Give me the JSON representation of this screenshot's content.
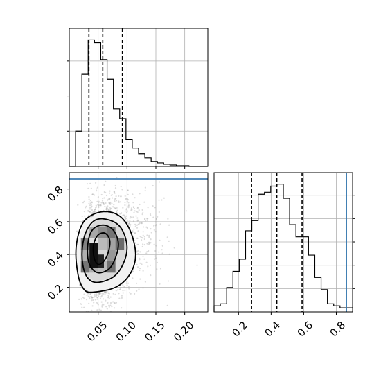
{
  "chart_data": [
    {
      "panel": "top-left",
      "type": "histogram",
      "variable": "x",
      "xlim": [
        0.0,
        0.24
      ],
      "bin_edges": [
        0.0,
        0.0109,
        0.0218,
        0.0327,
        0.0436,
        0.0545,
        0.0655,
        0.0764,
        0.0873,
        0.0982,
        0.1091,
        0.12,
        0.1309,
        0.1418,
        0.1527,
        0.1636,
        0.1745,
        0.1855,
        0.1964,
        0.2073,
        0.2182,
        0.2291,
        0.24
      ],
      "counts": [
        0,
        50,
        131,
        180,
        176,
        152,
        124,
        82,
        68,
        38,
        26,
        18,
        12,
        7,
        5,
        3,
        2,
        1,
        1,
        0,
        0,
        0
      ],
      "quantiles": [
        0.034,
        0.058,
        0.092
      ],
      "x_ticks": [
        0.05,
        0.1,
        0.15,
        0.2
      ],
      "x_tick_labels_shown": false
    },
    {
      "panel": "bottom-left",
      "type": "scatter-density-contour",
      "xlim": [
        0.0,
        0.24
      ],
      "ylim": [
        0.05,
        0.9
      ],
      "x_ticks": [
        0.05,
        0.1,
        0.15,
        0.2
      ],
      "x_tick_labels": [
        "0.05",
        "0.10",
        "0.15",
        "0.20"
      ],
      "y_ticks": [
        0.2,
        0.4,
        0.6,
        0.8
      ],
      "y_tick_labels": [
        "0.2",
        "0.4",
        "0.6",
        "0.8"
      ],
      "truth_y": 0.862,
      "truth_color": "#3a7ab0",
      "density_cells": [
        {
          "x": 0.035,
          "y": 0.36,
          "w": 0.015,
          "h": 0.07,
          "shade": 0.05
        },
        {
          "x": 0.035,
          "y": 0.43,
          "w": 0.015,
          "h": 0.07,
          "shade": 0.12
        },
        {
          "x": 0.05,
          "y": 0.36,
          "w": 0.015,
          "h": 0.07,
          "shade": 0.18
        },
        {
          "x": 0.05,
          "y": 0.29,
          "w": 0.015,
          "h": 0.07,
          "shade": 0.3
        },
        {
          "x": 0.05,
          "y": 0.43,
          "w": 0.015,
          "h": 0.07,
          "shade": 0.3
        },
        {
          "x": 0.02,
          "y": 0.36,
          "w": 0.015,
          "h": 0.07,
          "shade": 0.35
        },
        {
          "x": 0.035,
          "y": 0.5,
          "w": 0.015,
          "h": 0.07,
          "shade": 0.38
        },
        {
          "x": 0.065,
          "y": 0.43,
          "w": 0.015,
          "h": 0.07,
          "shade": 0.4
        },
        {
          "x": 0.035,
          "y": 0.29,
          "w": 0.015,
          "h": 0.07,
          "shade": 0.35
        },
        {
          "x": 0.065,
          "y": 0.36,
          "w": 0.015,
          "h": 0.07,
          "shade": 0.45
        },
        {
          "x": 0.05,
          "y": 0.5,
          "w": 0.015,
          "h": 0.07,
          "shade": 0.5
        },
        {
          "x": 0.065,
          "y": 0.5,
          "w": 0.015,
          "h": 0.07,
          "shade": 0.6
        },
        {
          "x": 0.065,
          "y": 0.29,
          "w": 0.015,
          "h": 0.07,
          "shade": 0.62
        },
        {
          "x": 0.08,
          "y": 0.43,
          "w": 0.015,
          "h": 0.07,
          "shade": 0.65
        },
        {
          "x": 0.02,
          "y": 0.43,
          "w": 0.015,
          "h": 0.07,
          "shade": 0.55
        },
        {
          "x": 0.02,
          "y": 0.29,
          "w": 0.015,
          "h": 0.07,
          "shade": 0.6
        }
      ],
      "contours": [
        [
          [
            0.04,
            0.17
          ],
          [
            0.08,
            0.2
          ],
          [
            0.105,
            0.28
          ],
          [
            0.115,
            0.4
          ],
          [
            0.105,
            0.55
          ],
          [
            0.085,
            0.64
          ],
          [
            0.055,
            0.66
          ],
          [
            0.025,
            0.6
          ],
          [
            0.012,
            0.45
          ],
          [
            0.015,
            0.28
          ],
          [
            0.025,
            0.19
          ]
        ],
        [
          [
            0.045,
            0.23
          ],
          [
            0.075,
            0.26
          ],
          [
            0.093,
            0.34
          ],
          [
            0.1,
            0.45
          ],
          [
            0.09,
            0.56
          ],
          [
            0.07,
            0.61
          ],
          [
            0.045,
            0.61
          ],
          [
            0.028,
            0.53
          ],
          [
            0.022,
            0.4
          ],
          [
            0.028,
            0.28
          ]
        ],
        [
          [
            0.048,
            0.29
          ],
          [
            0.068,
            0.31
          ],
          [
            0.08,
            0.38
          ],
          [
            0.085,
            0.47
          ],
          [
            0.076,
            0.55
          ],
          [
            0.058,
            0.58
          ],
          [
            0.04,
            0.55
          ],
          [
            0.032,
            0.46
          ],
          [
            0.034,
            0.35
          ]
        ],
        [
          [
            0.05,
            0.34
          ],
          [
            0.06,
            0.36
          ],
          [
            0.068,
            0.42
          ],
          [
            0.07,
            0.49
          ],
          [
            0.062,
            0.53
          ],
          [
            0.05,
            0.52
          ],
          [
            0.042,
            0.46
          ],
          [
            0.043,
            0.38
          ]
        ]
      ],
      "scatter_seed": 7
    },
    {
      "panel": "bottom-right",
      "type": "histogram",
      "variable": "y",
      "xlim": [
        0.05,
        0.9
      ],
      "bin_edges": [
        0.05,
        0.0886,
        0.1273,
        0.1659,
        0.2045,
        0.2432,
        0.2818,
        0.3205,
        0.3591,
        0.3977,
        0.4364,
        0.475,
        0.5136,
        0.5523,
        0.5909,
        0.6295,
        0.6682,
        0.7068,
        0.7455,
        0.7841,
        0.8227,
        0.8614,
        0.9
      ],
      "counts": [
        3,
        4,
        12,
        20,
        26,
        40,
        45,
        58,
        59,
        62,
        63,
        56,
        43,
        37,
        37,
        28,
        17,
        11,
        4,
        3,
        2,
        2
      ],
      "quantiles": [
        0.28,
        0.435,
        0.59
      ],
      "truth_x": 0.862,
      "truth_color": "#3a7ab0",
      "x_ticks": [
        0.2,
        0.4,
        0.6,
        0.8
      ],
      "x_tick_labels": [
        "0.2",
        "0.4",
        "0.6",
        "0.8"
      ]
    }
  ]
}
